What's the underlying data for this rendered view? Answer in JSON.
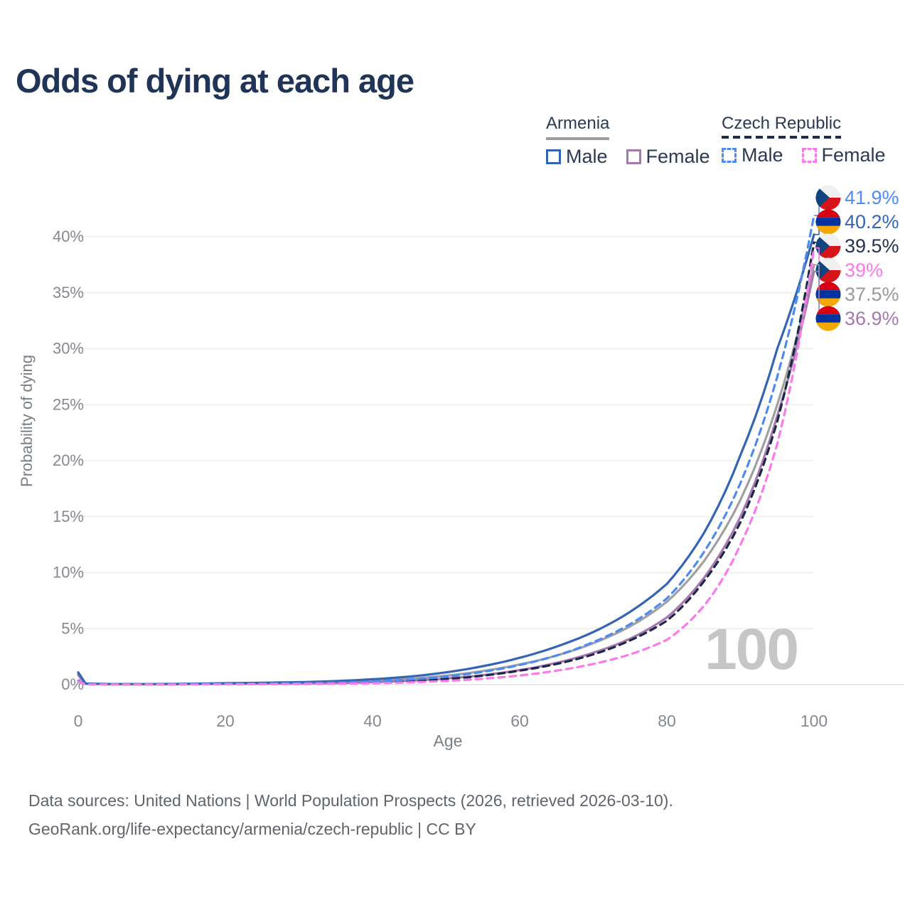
{
  "title": "Odds of dying at each age",
  "legend": {
    "groups": [
      {
        "country": "Armenia",
        "underline_style": "solid",
        "underline_color": "#9e9e9e",
        "items": [
          {
            "label": "Male",
            "color": "#3465b4",
            "dash": false
          },
          {
            "label": "Female",
            "color": "#a678b0",
            "dash": false
          }
        ]
      },
      {
        "country": "Czech Republic",
        "underline_style": "dashed",
        "underline_color": "#1d2b49",
        "items": [
          {
            "label": "Male",
            "color": "#4e8bf0",
            "dash": true
          },
          {
            "label": "Female",
            "color": "#f97ae8",
            "dash": true
          }
        ]
      }
    ]
  },
  "watermark": "100",
  "footer": {
    "line1": "Data sources: United Nations | World Population Prospects (2026, retrieved 2026-03-10).",
    "line2": "GeoRank.org/life-expectancy/armenia/czech-republic | CC BY"
  },
  "flag_colors": {
    "cz": {
      "white": "#f0f0f0",
      "red": "#d7141a",
      "blue": "#11457e"
    },
    "am": {
      "red": "#d90012",
      "blue": "#0033a0",
      "orange": "#f2a800"
    }
  },
  "chart_data": {
    "type": "line",
    "title": "Odds of dying at each age",
    "xlabel": "Age",
    "ylabel": "Probability of dying",
    "xlim": [
      0,
      100
    ],
    "ylim": [
      0,
      43
    ],
    "grid": true,
    "legend_position": "top-right",
    "x_ticks": [
      0,
      20,
      40,
      60,
      80,
      100
    ],
    "y_ticks": [
      "0%",
      "5%",
      "10%",
      "15%",
      "20%",
      "25%",
      "30%",
      "35%",
      "40%"
    ],
    "y_tick_values": [
      0,
      5,
      10,
      15,
      20,
      25,
      30,
      35,
      40
    ],
    "x": [
      0,
      1,
      5,
      10,
      15,
      20,
      25,
      30,
      35,
      40,
      45,
      50,
      55,
      60,
      65,
      70,
      75,
      80,
      85,
      90,
      95,
      100
    ],
    "series": [
      {
        "id": "czech-male",
        "country": "Czech Republic",
        "group": "Male",
        "color": "#4e8bf0",
        "label_color": "#4e8bf0",
        "dashed": true,
        "flag": "cz",
        "end_label": "41.9%",
        "end_value": 41.9,
        "z": 4,
        "values": [
          0.35,
          0.03,
          0.02,
          0.02,
          0.04,
          0.07,
          0.09,
          0.12,
          0.18,
          0.28,
          0.45,
          0.72,
          1.15,
          1.75,
          2.6,
          3.8,
          5.4,
          7.7,
          11.8,
          18.0,
          27.5,
          41.9
        ]
      },
      {
        "id": "armenia-male",
        "country": "Armenia",
        "group": "Male",
        "color": "#3465b4",
        "label_color": "#3465b4",
        "dashed": false,
        "flag": "am",
        "end_label": "40.2%",
        "end_value": 40.2,
        "z": 2,
        "values": [
          1.1,
          0.1,
          0.05,
          0.05,
          0.08,
          0.13,
          0.17,
          0.22,
          0.32,
          0.48,
          0.72,
          1.1,
          1.65,
          2.4,
          3.4,
          4.7,
          6.5,
          9.0,
          13.5,
          20.5,
          30.0,
          40.2
        ]
      },
      {
        "id": "czech-both",
        "country": "Czech Republic",
        "group": "Both sexes",
        "color": "#1b2847",
        "label_color": "#253352",
        "dashed": true,
        "flag": "cz",
        "end_label": "39.5%",
        "end_value": 39.5,
        "z": 3,
        "values": [
          0.3,
          0.03,
          0.02,
          0.02,
          0.03,
          0.05,
          0.06,
          0.08,
          0.12,
          0.19,
          0.3,
          0.5,
          0.8,
          1.25,
          1.85,
          2.7,
          3.95,
          5.7,
          9.2,
          14.5,
          23.5,
          39.5
        ]
      },
      {
        "id": "czech-female",
        "country": "Czech Republic",
        "group": "Female",
        "color": "#f97ae8",
        "label_color": "#f97ae8",
        "dashed": true,
        "flag": "cz",
        "end_label": "39%",
        "end_value": 39.0,
        "z": 5,
        "values": [
          0.28,
          0.02,
          0.01,
          0.01,
          0.02,
          0.03,
          0.04,
          0.05,
          0.08,
          0.12,
          0.2,
          0.33,
          0.53,
          0.82,
          1.25,
          1.85,
          2.7,
          4.0,
          7.0,
          12.5,
          21.5,
          39.0
        ]
      },
      {
        "id": "armenia-both",
        "country": "Armenia",
        "group": "Both sexes",
        "color": "#a0a0a0",
        "label_color": "#9a9a9a",
        "dashed": false,
        "flag": "am",
        "end_label": "37.5%",
        "end_value": 37.5,
        "z": 0,
        "values": [
          0.95,
          0.09,
          0.04,
          0.04,
          0.06,
          0.09,
          0.12,
          0.15,
          0.22,
          0.34,
          0.52,
          0.8,
          1.22,
          1.8,
          2.6,
          3.7,
          5.2,
          7.4,
          11.0,
          16.5,
          25.0,
          37.5
        ]
      },
      {
        "id": "armenia-female",
        "country": "Armenia",
        "group": "Female",
        "color": "#a678b0",
        "label_color": "#a678b0",
        "dashed": false,
        "flag": "am",
        "end_label": "36.9%",
        "end_value": 36.9,
        "z": 1,
        "values": [
          0.85,
          0.07,
          0.03,
          0.03,
          0.04,
          0.06,
          0.08,
          0.1,
          0.14,
          0.22,
          0.35,
          0.55,
          0.85,
          1.3,
          1.95,
          2.85,
          4.1,
          6.0,
          9.5,
          15.0,
          24.0,
          36.9
        ]
      }
    ]
  }
}
